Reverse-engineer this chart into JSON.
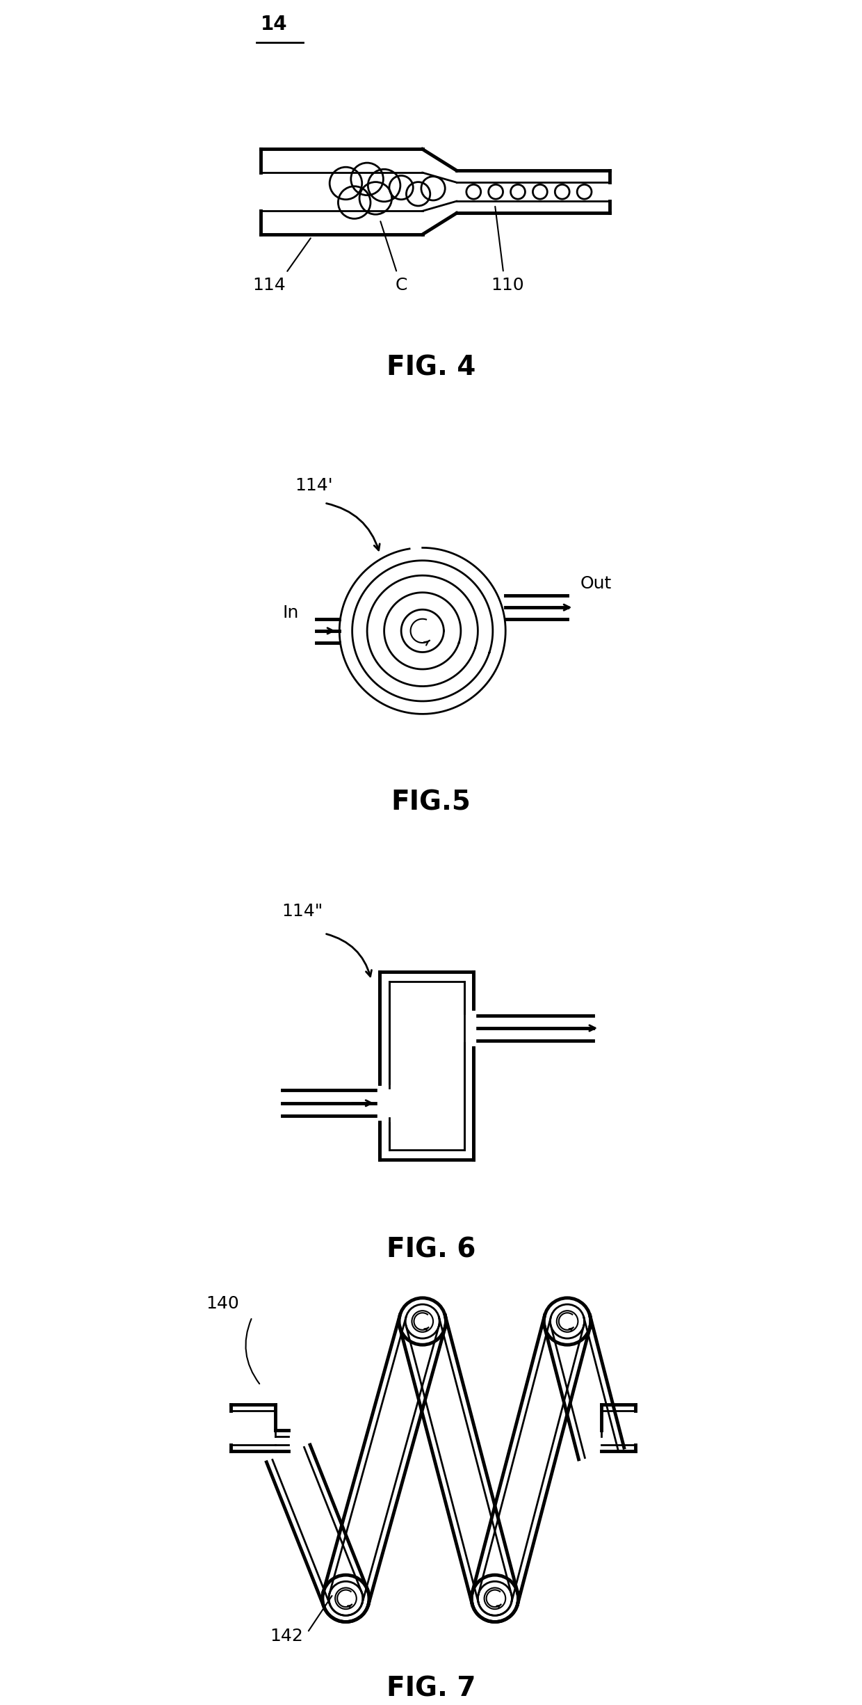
{
  "bg_color": "#ffffff",
  "line_color": "#000000",
  "fig4_label": "FIG. 4",
  "fig5_label": "FIG.5",
  "fig6_label": "FIG. 6",
  "fig7_label": "FIG. 7",
  "lw_thick": 3.5,
  "lw_main": 2.0,
  "lw_thin": 1.5
}
